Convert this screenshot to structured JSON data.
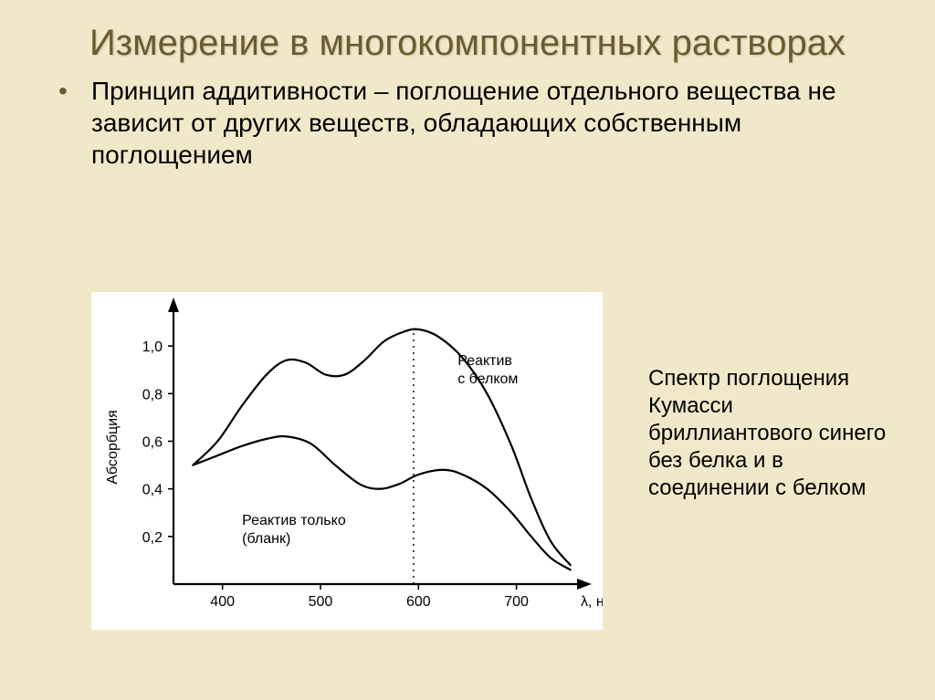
{
  "slide": {
    "title": "Измерение в многокомпонентных растворах",
    "bullet": "Принцип аддитивности – поглощение отдельного вещества не зависит от других веществ, обладающих собственным поглощением",
    "side_caption": "Спектр поглощения Кумасси бриллиантового синего без белка и в соединении с белком",
    "background_color": "#f1e8c9",
    "title_color": "#6b5b2f",
    "title_fontsize": 40,
    "body_fontsize": 28,
    "caption_fontsize": 24
  },
  "chart": {
    "type": "line",
    "background_color": "#ffffff",
    "axis_color": "#000000",
    "line_color": "#000000",
    "line_width": 2.2,
    "tick_fontsize": 16,
    "label_fontsize": 16,
    "y_label": "Абсорбция",
    "x_label": "λ, нм",
    "xlim": [
      350,
      760
    ],
    "ylim": [
      0.0,
      1.15
    ],
    "x_ticks": [
      400,
      500,
      600,
      700
    ],
    "y_ticks": [
      0.2,
      0.4,
      0.6,
      0.8,
      1.0
    ],
    "y_tick_labels": [
      "0,2",
      "0,4",
      "0,6",
      "0,8",
      "1,0"
    ],
    "vline_x": 595,
    "vline_style": "dotted",
    "series": [
      {
        "name": "Реактив только (бланк)",
        "label_lines": [
          "Реактив только",
          "(бланк)"
        ],
        "label_xy": [
          420,
          0.25
        ],
        "points": [
          [
            370,
            0.5
          ],
          [
            395,
            0.54
          ],
          [
            420,
            0.58
          ],
          [
            445,
            0.61
          ],
          [
            465,
            0.62
          ],
          [
            490,
            0.59
          ],
          [
            515,
            0.5
          ],
          [
            540,
            0.42
          ],
          [
            560,
            0.4
          ],
          [
            580,
            0.42
          ],
          [
            600,
            0.46
          ],
          [
            625,
            0.48
          ],
          [
            645,
            0.46
          ],
          [
            670,
            0.4
          ],
          [
            695,
            0.3
          ],
          [
            715,
            0.2
          ],
          [
            735,
            0.11
          ],
          [
            755,
            0.06
          ]
        ]
      },
      {
        "name": "Реактив с белком",
        "label_lines": [
          "Реактив",
          "с белком"
        ],
        "label_xy": [
          640,
          0.92
        ],
        "points": [
          [
            370,
            0.5
          ],
          [
            395,
            0.6
          ],
          [
            420,
            0.75
          ],
          [
            445,
            0.88
          ],
          [
            465,
            0.94
          ],
          [
            485,
            0.93
          ],
          [
            505,
            0.88
          ],
          [
            525,
            0.88
          ],
          [
            545,
            0.94
          ],
          [
            565,
            1.02
          ],
          [
            585,
            1.06
          ],
          [
            600,
            1.07
          ],
          [
            620,
            1.04
          ],
          [
            645,
            0.95
          ],
          [
            670,
            0.8
          ],
          [
            695,
            0.58
          ],
          [
            715,
            0.36
          ],
          [
            735,
            0.18
          ],
          [
            755,
            0.08
          ]
        ]
      }
    ]
  }
}
